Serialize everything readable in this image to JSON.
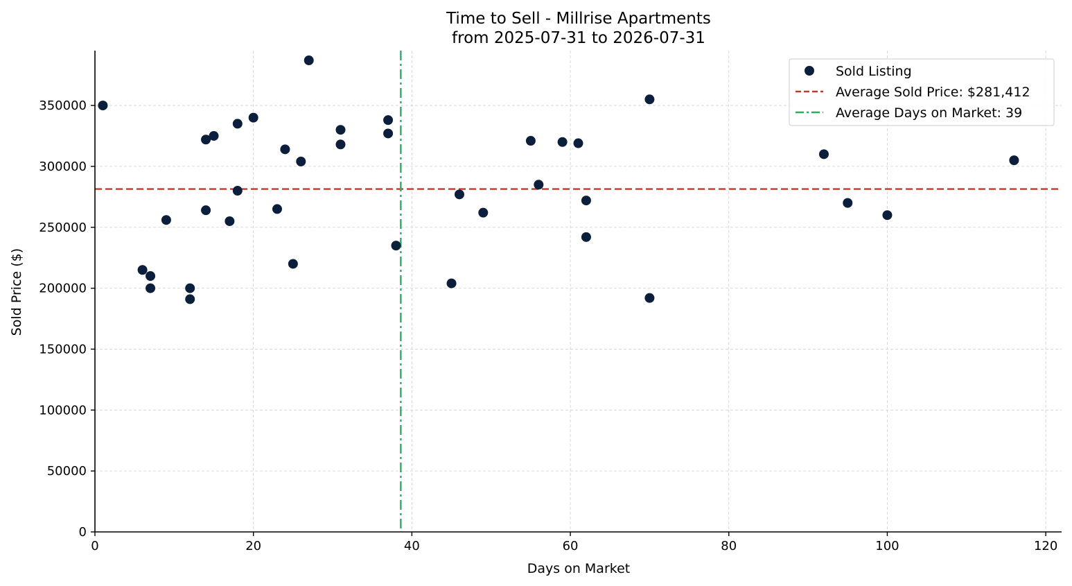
{
  "chart_data": {
    "type": "scatter",
    "title": "Time to Sell - Millrise Apartments",
    "subtitle": "from 2025-07-31 to 2026-07-31",
    "xlabel": "Days on Market",
    "ylabel": "Sold Price ($)",
    "xlim": [
      0,
      122
    ],
    "ylim": [
      0,
      395000
    ],
    "xticks": [
      0,
      20,
      40,
      60,
      80,
      100,
      120
    ],
    "yticks": [
      0,
      50000,
      100000,
      150000,
      200000,
      250000,
      300000,
      350000
    ],
    "grid": true,
    "legend_position": "top-right",
    "series": [
      {
        "name": "Sold Listing",
        "color": "#0b1e3b",
        "marker": "circle",
        "points": [
          {
            "x": 1,
            "y": 350000
          },
          {
            "x": 6,
            "y": 215000
          },
          {
            "x": 7,
            "y": 210000
          },
          {
            "x": 7,
            "y": 200000
          },
          {
            "x": 9,
            "y": 256000
          },
          {
            "x": 12,
            "y": 200000
          },
          {
            "x": 12,
            "y": 191000
          },
          {
            "x": 14,
            "y": 322000
          },
          {
            "x": 14,
            "y": 264000
          },
          {
            "x": 15,
            "y": 325000
          },
          {
            "x": 17,
            "y": 255000
          },
          {
            "x": 18,
            "y": 335000
          },
          {
            "x": 18,
            "y": 280000
          },
          {
            "x": 20,
            "y": 340000
          },
          {
            "x": 23,
            "y": 265000
          },
          {
            "x": 24,
            "y": 314000
          },
          {
            "x": 25,
            "y": 220000
          },
          {
            "x": 26,
            "y": 304000
          },
          {
            "x": 27,
            "y": 387000
          },
          {
            "x": 31,
            "y": 330000
          },
          {
            "x": 31,
            "y": 318000
          },
          {
            "x": 37,
            "y": 338000
          },
          {
            "x": 37,
            "y": 327000
          },
          {
            "x": 38,
            "y": 235000
          },
          {
            "x": 45,
            "y": 204000
          },
          {
            "x": 46,
            "y": 277000
          },
          {
            "x": 49,
            "y": 262000
          },
          {
            "x": 55,
            "y": 321000
          },
          {
            "x": 56,
            "y": 285000
          },
          {
            "x": 59,
            "y": 320000
          },
          {
            "x": 61,
            "y": 319000
          },
          {
            "x": 62,
            "y": 272000
          },
          {
            "x": 62,
            "y": 242000
          },
          {
            "x": 70,
            "y": 355000
          },
          {
            "x": 70,
            "y": 192000
          },
          {
            "x": 92,
            "y": 310000
          },
          {
            "x": 95,
            "y": 270000
          },
          {
            "x": 100,
            "y": 260000
          },
          {
            "x": 116,
            "y": 305000
          }
        ]
      }
    ],
    "reference_lines": [
      {
        "name": "Average Sold Price: $281,412",
        "orientation": "horizontal",
        "value": 281412,
        "color": "#c0392b",
        "style": "dashed"
      },
      {
        "name": "Average Days on Market: 39",
        "orientation": "vertical",
        "value": 38.6,
        "color": "#27ae60",
        "style": "dashdot"
      }
    ]
  }
}
